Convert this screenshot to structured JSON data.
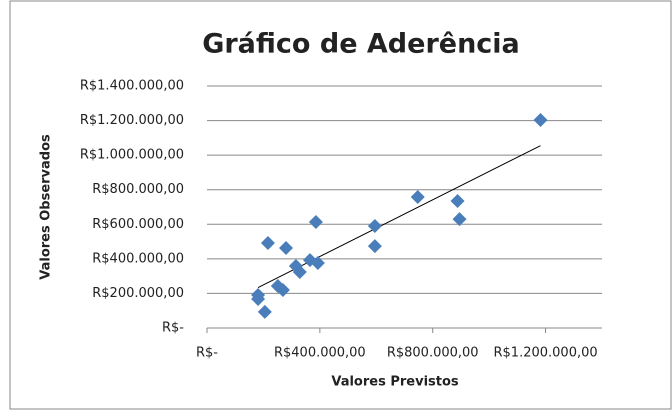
{
  "chart_data": {
    "type": "scatter",
    "title": "Gráfico de Aderência",
    "x_label": "Valores Previstos",
    "y_label": "Valores Observados",
    "series": [
      {
        "name": "Valores Observados",
        "color": "#4a7ebb",
        "x": [
          1182000,
          888000,
          895000,
          747000,
          595000,
          595000,
          386000,
          216000,
          280000,
          393000,
          365000,
          315000,
          329000,
          251000,
          269000,
          181000,
          181000,
          205000
        ],
        "values": [
          1203000,
          735000,
          630000,
          758000,
          590000,
          474000,
          613000,
          492000,
          463000,
          376000,
          393000,
          359000,
          324000,
          243000,
          220000,
          191000,
          168000,
          93000
        ]
      }
    ],
    "trendline": "linear",
    "xlim": [
      0,
      1400000
    ],
    "xticks": [
      {
        "value": 0,
        "label": "R$-"
      },
      {
        "value": 400000,
        "label": "R$400.000,00"
      },
      {
        "value": 800000,
        "label": "R$800.000,00"
      },
      {
        "value": 1200000,
        "label": "R$1.200.000,00"
      }
    ],
    "ylim": [
      0,
      1400000
    ],
    "yticks": [
      {
        "value": 0,
        "label": "R$-"
      },
      {
        "value": 200000,
        "label": "R$200.000,00"
      },
      {
        "value": 400000,
        "label": "R$400.000,00"
      },
      {
        "value": 600000,
        "label": "R$600.000,00"
      },
      {
        "value": 800000,
        "label": "R$800.000,00"
      },
      {
        "value": 1000000,
        "label": "R$1.000.000,00"
      },
      {
        "value": 1200000,
        "label": "R$1.200.000,00"
      },
      {
        "value": 1400000,
        "label": "R$1.400.000,00"
      }
    ],
    "grid": true
  }
}
